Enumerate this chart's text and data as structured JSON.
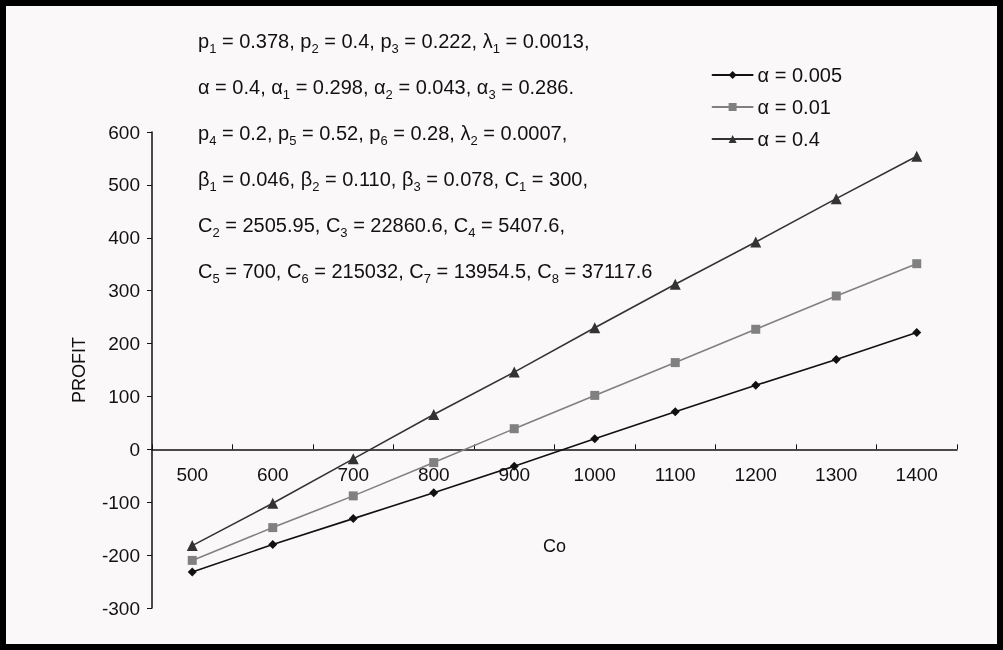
{
  "chart_data": {
    "type": "line",
    "xlabel": "Co",
    "ylabel": "PROFIT",
    "categories": [
      "500",
      "600",
      "700",
      "800",
      "900",
      "1000",
      "1100",
      "1200",
      "1300",
      "1400"
    ],
    "series": [
      {
        "name": "α = 0.005",
        "color": "#111111",
        "marker": "diamond",
        "values": [
          -232,
          -180,
          -131,
          -82,
          -32,
          20,
          71,
          121,
          170,
          221
        ]
      },
      {
        "name": "α = 0.01",
        "color": "#808080",
        "marker": "square",
        "values": [
          -210,
          -148,
          -88,
          -25,
          39,
          102,
          164,
          227,
          290,
          351
        ]
      },
      {
        "name": "α = 0.4",
        "color": "#333333",
        "marker": "triangle",
        "values": [
          -182,
          -102,
          -18,
          66,
          146,
          230,
          312,
          392,
          474,
          554
        ]
      }
    ],
    "ylim": [
      -300,
      600
    ],
    "yticks": [
      -300,
      -200,
      -100,
      0,
      100,
      200,
      300,
      400,
      500,
      600
    ],
    "grid": false,
    "legend": "top right",
    "line_style": "solid",
    "annotations": [
      "p$_{1}$ = 0.378, p$_{2}$ = 0.4, p$_{3}$ = 0.222, λ$_{1}$ = 0.0013,",
      "α = 0.4, α$_{1}$ = 0.298, α$_{2}$ = 0.043, α$_{3}$ = 0.286.",
      "p$_{4}$ = 0.2, p$_{5}$ = 0.52, p$_{6}$ = 0.28, λ$_{2}$ = 0.0007,",
      "β$_{1}$ = 0.046, β$_{2}$ = 0.110, β$_{3}$ = 0.078, C$_{1}$ = 300,",
      "C$_{2}$ = 2505.95, C$_{3}$ = 22860.6, C$_{4}$ = 5407.6,",
      "C$_{5}$ = 700, C$_{6}$ = 215032, C$_{7}$ = 13954.5, C$_{8}$ = 37117.6"
    ]
  }
}
